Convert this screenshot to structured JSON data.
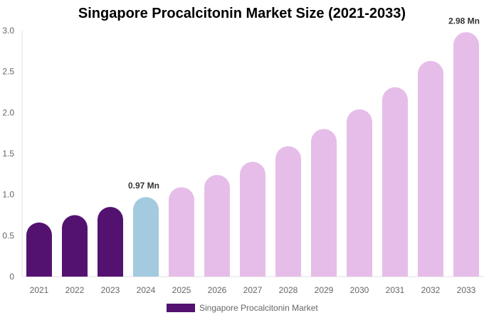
{
  "chart_data": {
    "type": "bar",
    "title": "Singapore Procalcitonin Market Size (2021-2033)",
    "categories": [
      "2021",
      "2022",
      "2023",
      "2024",
      "2025",
      "2026",
      "2027",
      "2028",
      "2029",
      "2030",
      "2031",
      "2032",
      "2033"
    ],
    "series": [
      {
        "name": "Singapore Procalcitonin Market",
        "values": [
          0.66,
          0.75,
          0.85,
          0.97,
          1.09,
          1.24,
          1.4,
          1.59,
          1.8,
          2.04,
          2.31,
          2.63,
          2.98
        ]
      }
    ],
    "data_labels": [
      {
        "category": "2024",
        "text": "0.97 Mn"
      },
      {
        "category": "2033",
        "text": "2.98 Mn"
      }
    ],
    "ylim": [
      0,
      3.0
    ],
    "yticks": [
      "0",
      "0.5",
      "1.0",
      "1.5",
      "2.0",
      "2.5",
      "3.0"
    ],
    "grid": false,
    "legend": "bottom",
    "colors": {
      "historical": "#541270",
      "base_year": "#A3CADE",
      "forecast": "#E6BDE8"
    }
  }
}
